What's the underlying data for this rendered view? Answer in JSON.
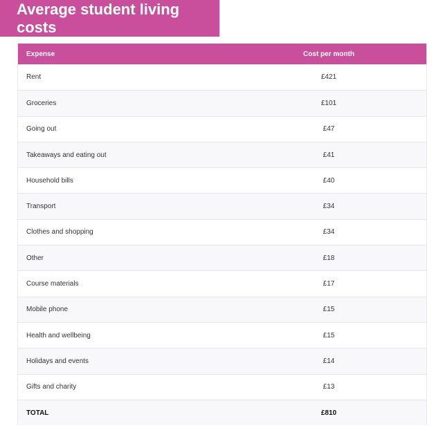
{
  "title": "Average student living costs",
  "chart_data": {
    "type": "table",
    "columns": [
      "Expense",
      "Cost per month"
    ],
    "rows": [
      {
        "expense": "Rent",
        "cost": "£421"
      },
      {
        "expense": "Groceries",
        "cost": "£101"
      },
      {
        "expense": "Going out",
        "cost": "£47"
      },
      {
        "expense": "Takeaways and eating out",
        "cost": "£41"
      },
      {
        "expense": "Household bills",
        "cost": "£40"
      },
      {
        "expense": "Transport",
        "cost": "£34"
      },
      {
        "expense": "Clothes and shopping",
        "cost": "£34"
      },
      {
        "expense": "Other",
        "cost": "£18"
      },
      {
        "expense": "Course materials",
        "cost": "£17"
      },
      {
        "expense": "Mobile phone",
        "cost": "£15"
      },
      {
        "expense": "Health and wellbeing",
        "cost": "£15"
      },
      {
        "expense": "Holidays and events",
        "cost": "£14"
      },
      {
        "expense": "Gifts and charity",
        "cost": "£13"
      }
    ],
    "total": {
      "expense": "TOTAL",
      "cost": "£810"
    }
  },
  "colors": {
    "accent": "#c94f9d",
    "row_alt": "#f8f7f9",
    "divider": "#e6e6e6"
  }
}
